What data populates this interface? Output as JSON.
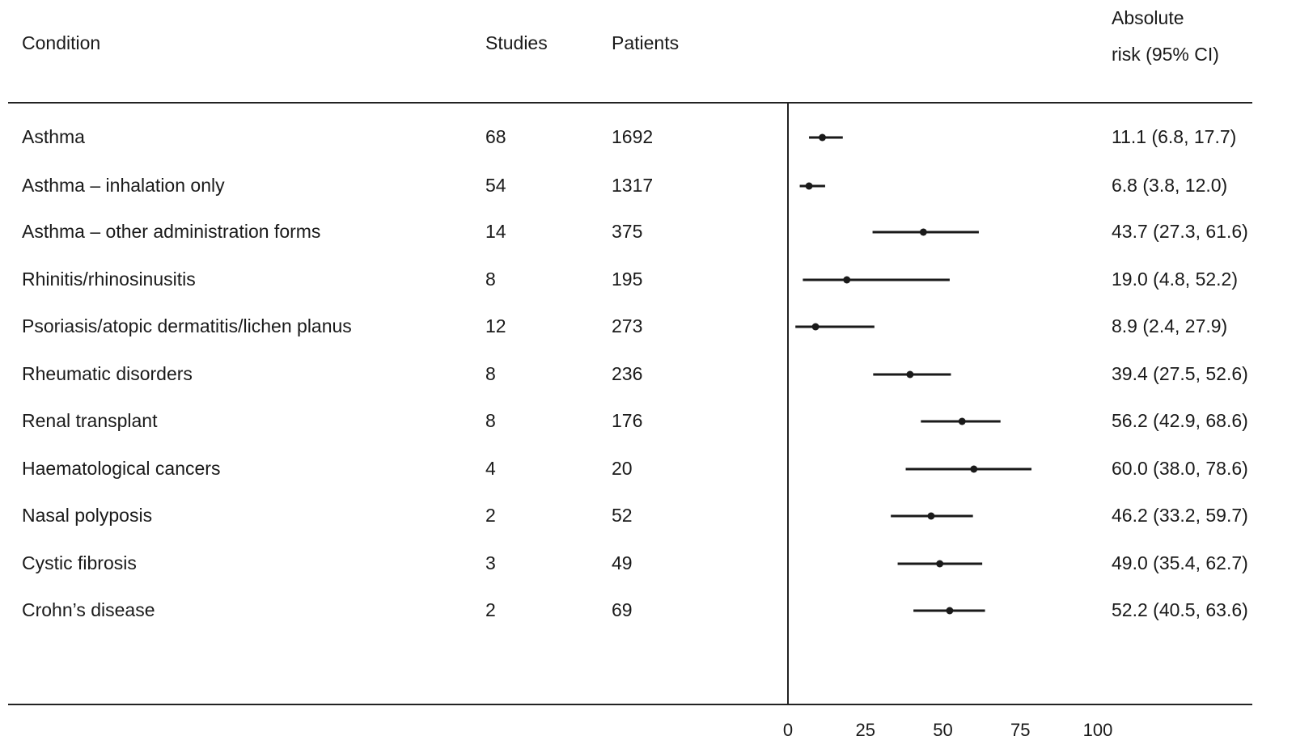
{
  "columns": {
    "condition": "Condition",
    "studies": "Studies",
    "patients": "Patients",
    "risk_line1": "Absolute",
    "risk_line2": "risk (95% CI)"
  },
  "rows": [
    {
      "condition": "Asthma",
      "studies": "68",
      "patients": "1692",
      "risk_text": "11.1 (6.8, 17.7)"
    },
    {
      "condition": "Asthma – inhalation only",
      "studies": "54",
      "patients": "1317",
      "risk_text": "6.8 (3.8, 12.0)"
    },
    {
      "condition": "Asthma – other administration forms",
      "studies": "14",
      "patients": "375",
      "risk_text": "43.7 (27.3, 61.6)"
    },
    {
      "condition": "Rhinitis/rhinosinusitis",
      "studies": "8",
      "patients": "195",
      "risk_text": "19.0 (4.8, 52.2)"
    },
    {
      "condition": "Psoriasis/atopic dermatitis/lichen planus",
      "studies": "12",
      "patients": "273",
      "risk_text": "8.9 (2.4, 27.9)"
    },
    {
      "condition": "Rheumatic disorders",
      "studies": "8",
      "patients": "236",
      "risk_text": "39.4 (27.5, 52.6)"
    },
    {
      "condition": "Renal transplant",
      "studies": "8",
      "patients": "176",
      "risk_text": "56.2 (42.9, 68.6)"
    },
    {
      "condition": "Haematological cancers",
      "studies": "4",
      "patients": "20",
      "risk_text": "60.0 (38.0, 78.6)"
    },
    {
      "condition": "Nasal polyposis",
      "studies": "2",
      "patients": "52",
      "risk_text": "46.2 (33.2, 59.7)"
    },
    {
      "condition": "Cystic fibrosis",
      "studies": "3",
      "patients": "49",
      "risk_text": "49.0 (35.4, 62.7)"
    },
    {
      "condition": "Crohn’s disease",
      "studies": "2",
      "patients": "69",
      "risk_text": "52.2 (40.5, 63.6)"
    }
  ],
  "chart_data": {
    "type": "forest",
    "categories": [
      "Asthma",
      "Asthma – inhalation only",
      "Asthma – other administration forms",
      "Rhinitis/rhinosinusitis",
      "Psoriasis/atopic dermatitis/lichen planus",
      "Rheumatic disorders",
      "Renal transplant",
      "Haematological cancers",
      "Nasal polyposis",
      "Cystic fibrosis",
      "Crohn’s disease"
    ],
    "estimates": [
      11.1,
      6.8,
      43.7,
      19.0,
      8.9,
      39.4,
      56.2,
      60.0,
      46.2,
      49.0,
      52.2
    ],
    "ci_lower": [
      6.8,
      3.8,
      27.3,
      4.8,
      2.4,
      27.5,
      42.9,
      38.0,
      33.2,
      35.4,
      40.5
    ],
    "ci_upper": [
      17.7,
      12.0,
      61.6,
      52.2,
      27.9,
      52.6,
      68.6,
      78.6,
      59.7,
      62.7,
      63.6
    ],
    "xlim": [
      0,
      100
    ],
    "xticks": [
      0,
      25,
      50,
      75,
      100
    ],
    "xtick_labels": [
      "0",
      "25",
      "50",
      "75",
      "100"
    ],
    "grid": false,
    "colors": {
      "marker": "#1a1a1a",
      "line": "#1a1a1a"
    }
  }
}
